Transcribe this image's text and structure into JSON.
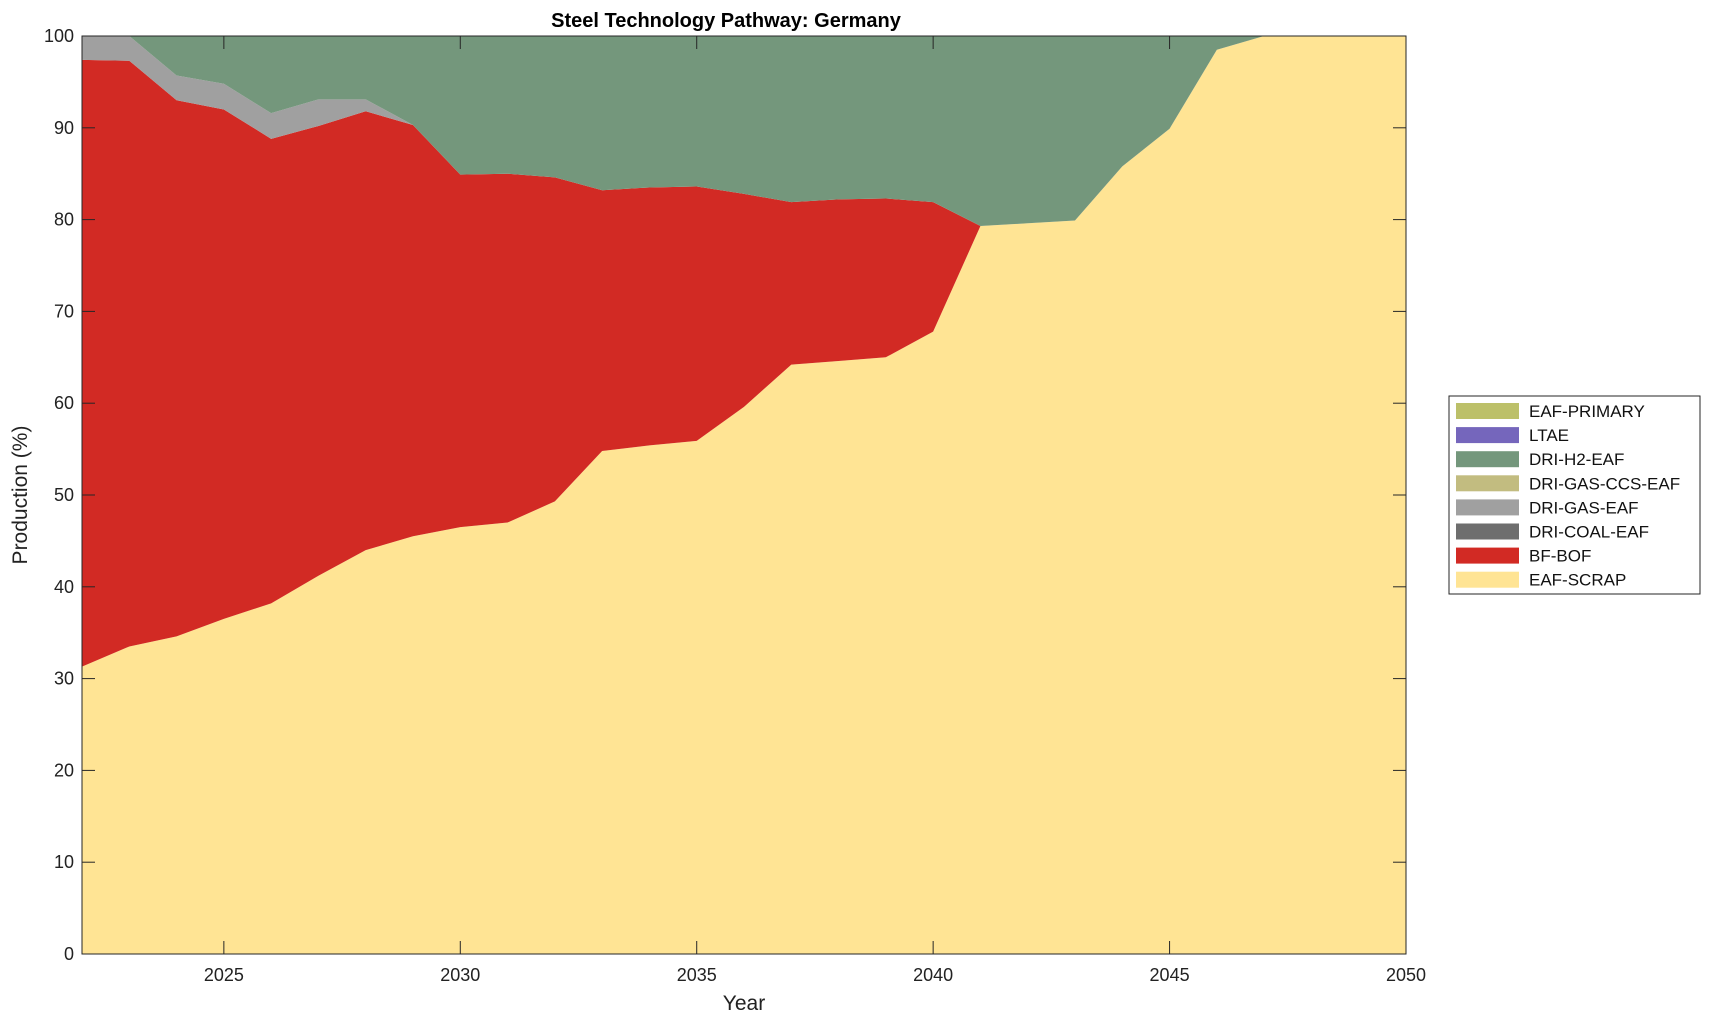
{
  "chart_data": {
    "type": "area",
    "stacked": true,
    "title": "Steel Technology Pathway: Germany",
    "xlabel": "Year",
    "ylabel": "Production (%)",
    "xlim": [
      2022,
      2050
    ],
    "ylim": [
      0,
      100
    ],
    "xticks": [
      2025,
      2030,
      2035,
      2040,
      2045,
      2050
    ],
    "yticks": [
      0,
      10,
      20,
      30,
      40,
      50,
      60,
      70,
      80,
      90,
      100
    ],
    "grid": false,
    "legend_position": "right",
    "x": [
      2022,
      2023,
      2024,
      2025,
      2026,
      2027,
      2028,
      2029,
      2030,
      2031,
      2032,
      2033,
      2034,
      2035,
      2036,
      2037,
      2038,
      2039,
      2040,
      2041,
      2042,
      2043,
      2044,
      2045,
      2046,
      2047,
      2048,
      2049,
      2050
    ],
    "series": [
      {
        "name": "EAF-SCRAP",
        "color": "#FFE494",
        "values": [
          31.3,
          33.5,
          34.6,
          36.5,
          38.2,
          41.2,
          44.0,
          45.5,
          46.5,
          47.0,
          49.3,
          54.8,
          55.4,
          55.9,
          59.6,
          64.2,
          64.6,
          65.0,
          67.8,
          79.3,
          79.6,
          79.9,
          85.8,
          89.9,
          98.5,
          100,
          100,
          100,
          100
        ]
      },
      {
        "name": "BF-BOF",
        "color": "#D22A24",
        "values": [
          66.1,
          63.8,
          58.4,
          55.5,
          50.6,
          49.0,
          47.8,
          44.8,
          38.4,
          38.0,
          35.3,
          28.4,
          28.1,
          27.7,
          23.2,
          17.7,
          17.6,
          17.3,
          14.1,
          0,
          0,
          0,
          0,
          0,
          0,
          0,
          0,
          0,
          0
        ]
      },
      {
        "name": "DRI-COAL-EAF",
        "color": "#6E6E6E",
        "values": [
          0,
          0,
          0,
          0,
          0,
          0,
          0,
          0,
          0,
          0,
          0,
          0,
          0,
          0,
          0,
          0,
          0,
          0,
          0,
          0,
          0,
          0,
          0,
          0,
          0,
          0,
          0,
          0,
          0
        ]
      },
      {
        "name": "DRI-GAS-EAF",
        "color": "#A0A0A0",
        "values": [
          2.6,
          2.7,
          2.7,
          2.8,
          2.8,
          2.9,
          1.3,
          0,
          0,
          0,
          0,
          0,
          0,
          0,
          0,
          0,
          0,
          0,
          0,
          0,
          0,
          0,
          0,
          0,
          0,
          0,
          0,
          0,
          0
        ]
      },
      {
        "name": "DRI-GAS-CCS-EAF",
        "color": "#C2BC80",
        "values": [
          0,
          0,
          0,
          0,
          0,
          0,
          0,
          0,
          0,
          0,
          0,
          0,
          0,
          0,
          0,
          0,
          0,
          0,
          0,
          0,
          0,
          0,
          0,
          0,
          0,
          0,
          0,
          0,
          0
        ]
      },
      {
        "name": "DRI-H2-EAF",
        "color": "#74977C",
        "values": [
          0,
          0,
          4.3,
          5.2,
          8.4,
          6.9,
          6.9,
          9.7,
          15.1,
          15.0,
          15.4,
          16.8,
          16.5,
          16.4,
          17.2,
          18.1,
          17.8,
          17.7,
          18.1,
          20.7,
          20.4,
          20.1,
          14.2,
          10.1,
          1.5,
          0,
          0,
          0,
          0
        ]
      },
      {
        "name": "LTAE",
        "color": "#7566BC",
        "values": [
          0,
          0,
          0,
          0,
          0,
          0,
          0,
          0,
          0,
          0,
          0,
          0,
          0,
          0,
          0,
          0,
          0,
          0,
          0,
          0,
          0,
          0,
          0,
          0,
          0,
          0,
          0,
          0,
          0
        ]
      },
      {
        "name": "EAF-PRIMARY",
        "color": "#BCC069",
        "values": [
          0,
          0,
          0,
          0,
          0,
          0,
          0,
          0,
          0,
          0,
          0,
          0,
          0,
          0,
          0,
          0,
          0,
          0,
          0,
          0,
          0,
          0,
          0,
          0,
          0,
          0,
          0,
          0,
          0
        ]
      }
    ],
    "legend_order": [
      "EAF-PRIMARY",
      "LTAE",
      "DRI-H2-EAF",
      "DRI-GAS-CCS-EAF",
      "DRI-GAS-EAF",
      "DRI-COAL-EAF",
      "BF-BOF",
      "EAF-SCRAP"
    ]
  }
}
